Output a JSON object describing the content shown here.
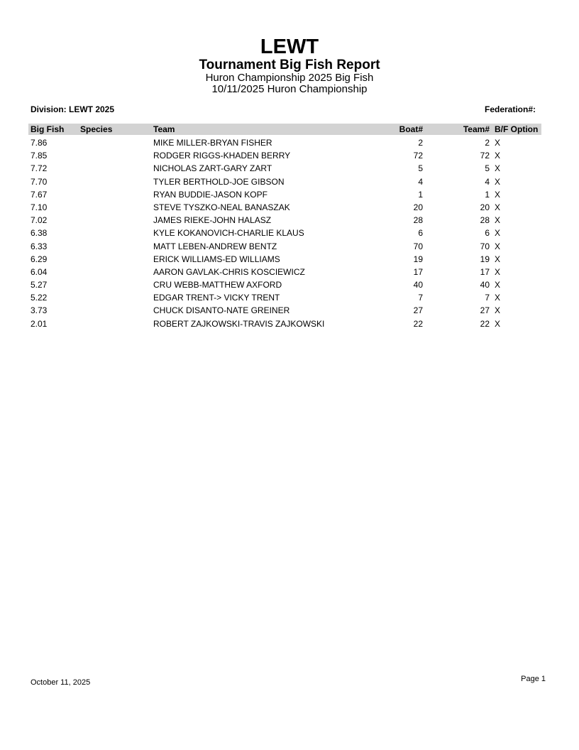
{
  "header": {
    "org": "LEWT",
    "report_title": "Tournament Big Fish Report",
    "subtitle1": "Huron Championship 2025 Big Fish",
    "subtitle2": "10/11/2025 Huron Championship"
  },
  "meta": {
    "division_label": "Division: LEWT 2025",
    "federation_label": "Federation#:"
  },
  "table": {
    "columns": [
      "Big Fish",
      "Species",
      "Team",
      "Boat#",
      "Team#",
      "B/F Option"
    ],
    "rows": [
      {
        "big_fish": "7.86",
        "species": "",
        "team": "MIKE MILLER-BRYAN FISHER",
        "boat": "2",
        "team_num": "2",
        "bf_option": "X"
      },
      {
        "big_fish": "7.85",
        "species": "",
        "team": "RODGER RIGGS-KHADEN BERRY",
        "boat": "72",
        "team_num": "72",
        "bf_option": "X"
      },
      {
        "big_fish": "7.72",
        "species": "",
        "team": "NICHOLAS ZART-GARY ZART",
        "boat": "5",
        "team_num": "5",
        "bf_option": "X"
      },
      {
        "big_fish": "7.70",
        "species": "",
        "team": "TYLER BERTHOLD-JOE GIBSON",
        "boat": "4",
        "team_num": "4",
        "bf_option": "X"
      },
      {
        "big_fish": "7.67",
        "species": "",
        "team": "RYAN BUDDIE-JASON KOPF",
        "boat": "1",
        "team_num": "1",
        "bf_option": "X"
      },
      {
        "big_fish": "7.10",
        "species": "",
        "team": "STEVE TYSZKO-NEAL BANASZAK",
        "boat": "20",
        "team_num": "20",
        "bf_option": "X"
      },
      {
        "big_fish": "7.02",
        "species": "",
        "team": "JAMES RIEKE-JOHN HALASZ",
        "boat": "28",
        "team_num": "28",
        "bf_option": "X"
      },
      {
        "big_fish": "6.38",
        "species": "",
        "team": "KYLE KOKANOVICH-CHARLIE KLAUS",
        "boat": "6",
        "team_num": "6",
        "bf_option": "X"
      },
      {
        "big_fish": "6.33",
        "species": "",
        "team": "MATT LEBEN-ANDREW BENTZ",
        "boat": "70",
        "team_num": "70",
        "bf_option": "X"
      },
      {
        "big_fish": "6.29",
        "species": "",
        "team": "ERICK WILLIAMS-ED WILLIAMS",
        "boat": "19",
        "team_num": "19",
        "bf_option": "X"
      },
      {
        "big_fish": "6.04",
        "species": "",
        "team": "AARON GAVLAK-CHRIS KOSCIEWICZ",
        "boat": "17",
        "team_num": "17",
        "bf_option": "X"
      },
      {
        "big_fish": "5.27",
        "species": "",
        "team": "CRU WEBB-MATTHEW AXFORD",
        "boat": "40",
        "team_num": "40",
        "bf_option": "X"
      },
      {
        "big_fish": "5.22",
        "species": "",
        "team": "EDGAR TRENT-> VICKY TRENT",
        "boat": "7",
        "team_num": "7",
        "bf_option": "X"
      },
      {
        "big_fish": "3.73",
        "species": "",
        "team": "CHUCK DISANTO-NATE GREINER",
        "boat": "27",
        "team_num": "27",
        "bf_option": "X"
      },
      {
        "big_fish": "2.01",
        "species": "",
        "team": "ROBERT ZAJKOWSKI-TRAVIS ZAJKOWSKI",
        "boat": "22",
        "team_num": "22",
        "bf_option": "X"
      }
    ]
  },
  "footer": {
    "date": "October 11, 2025",
    "page": "Page 1"
  },
  "colors": {
    "table_header_bg": "#d3d3d3",
    "page_bg": "#ffffff",
    "text": "#000000"
  }
}
